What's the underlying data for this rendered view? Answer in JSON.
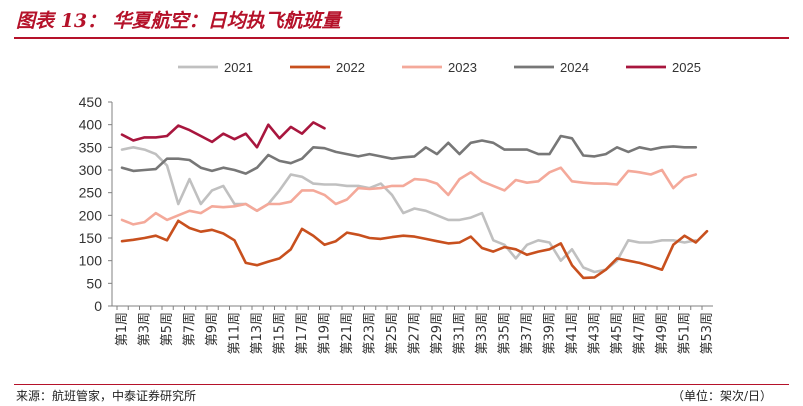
{
  "header": {
    "title": "图表 13：  华夏航空：日均执飞航班量"
  },
  "footer": {
    "source": "来源：航班管家，中泰证券研究所",
    "unit": "（单位：架次/日）"
  },
  "colors": {
    "title": "#b5122a",
    "axis": "#808080",
    "s2021": "#c0c0c0",
    "s2022": "#c8501e",
    "s2023": "#f4a99a",
    "s2024": "#777777",
    "s2025": "#a8163e"
  },
  "chart_data": {
    "type": "line",
    "title": "华夏航空：日均执飞航班量",
    "ylim": [
      0,
      450
    ],
    "yticks": [
      0,
      50,
      100,
      150,
      200,
      250,
      300,
      350,
      400,
      450
    ],
    "x_count": 53,
    "xtick_labels": [
      "第1周",
      "第3周",
      "第5周",
      "第7周",
      "第9周",
      "第11周",
      "第13周",
      "第15周",
      "第17周",
      "第19周",
      "第21周",
      "第23周",
      "第25周",
      "第27周",
      "第29周",
      "第31周",
      "第33周",
      "第35周",
      "第37周",
      "第39周",
      "第41周",
      "第43周",
      "第45周",
      "第47周",
      "第49周",
      "第51周",
      "第53周"
    ],
    "legend": [
      "2021",
      "2022",
      "2023",
      "2024",
      "2025"
    ],
    "series": [
      {
        "name": "2021",
        "values": [
          345,
          350,
          345,
          335,
          310,
          225,
          280,
          225,
          255,
          265,
          225,
          225,
          210,
          225,
          255,
          290,
          285,
          270,
          268,
          268,
          265,
          265,
          260,
          270,
          245,
          205,
          215,
          210,
          200,
          190,
          190,
          195,
          205,
          145,
          135,
          105,
          135,
          145,
          140,
          100,
          125,
          85,
          75,
          80,
          100,
          145,
          140,
          140,
          145,
          145,
          140,
          145
        ]
      },
      {
        "name": "2022",
        "values": [
          143,
          146,
          150,
          155,
          145,
          188,
          172,
          164,
          168,
          160,
          145,
          95,
          90,
          98,
          105,
          125,
          170,
          155,
          135,
          143,
          162,
          157,
          150,
          148,
          152,
          155,
          153,
          148,
          143,
          138,
          140,
          153,
          128,
          120,
          130,
          125,
          113,
          120,
          125,
          138,
          90,
          62,
          63,
          80,
          105,
          100,
          95,
          88,
          80,
          135,
          155,
          140,
          165
        ]
      },
      {
        "name": "2023",
        "values": [
          190,
          180,
          185,
          205,
          190,
          200,
          210,
          205,
          220,
          218,
          220,
          225,
          210,
          225,
          225,
          230,
          255,
          255,
          245,
          225,
          235,
          260,
          258,
          260,
          265,
          265,
          280,
          278,
          270,
          245,
          280,
          295,
          275,
          265,
          255,
          278,
          272,
          275,
          295,
          305,
          275,
          272,
          270,
          270,
          268,
          298,
          295,
          290,
          300,
          260,
          283,
          290
        ]
      },
      {
        "name": "2024",
        "values": [
          305,
          298,
          300,
          302,
          325,
          325,
          322,
          305,
          298,
          305,
          300,
          292,
          305,
          333,
          320,
          315,
          325,
          350,
          348,
          340,
          335,
          330,
          335,
          330,
          325,
          328,
          330,
          350,
          335,
          360,
          335,
          360,
          365,
          360,
          345,
          345,
          345,
          335,
          335,
          375,
          370,
          332,
          330,
          335,
          350,
          340,
          350,
          345,
          350,
          352,
          350,
          350
        ]
      },
      {
        "name": "2025",
        "values": [
          378,
          365,
          372,
          372,
          375,
          398,
          388,
          375,
          362,
          380,
          368,
          380,
          350,
          400,
          370,
          395,
          380,
          405,
          392
        ]
      }
    ]
  }
}
